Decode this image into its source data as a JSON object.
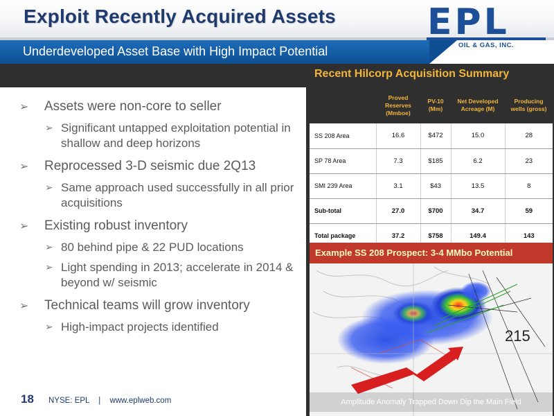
{
  "header": {
    "title": "Exploit Recently Acquired Assets",
    "subtitle": "Underdeveloped Asset Base with High Impact Potential"
  },
  "logo": {
    "letters": "EPL",
    "company": "OIL & GAS, INC."
  },
  "bullets": [
    {
      "text": "Assets were non-core to seller",
      "sub": [
        "Significant untapped exploitation potential in shallow and deep horizons"
      ]
    },
    {
      "text": "Reprocessed 3-D seismic due 2Q13",
      "sub": [
        "Same approach used successfully in all prior acquisitions"
      ]
    },
    {
      "text": "Existing robust inventory",
      "sub": [
        "80 behind pipe & 22 PUD locations",
        "Light spending in 2013; accelerate in 2014 & beyond w/ seismic"
      ]
    },
    {
      "text": "Technical teams will grow inventory",
      "sub": [
        "High-impact projects identified"
      ]
    }
  ],
  "footer": {
    "page": "18",
    "ticker": "NYSE: EPL",
    "separator": "|",
    "url": "www.eplweb.com"
  },
  "summary": {
    "title": "Recent Hilcorp Acquisition Summary",
    "headers": [
      "",
      "Proved Reserves (Mmboe)",
      "PV-10 (Mm)",
      "Net Developed Acreage (M)",
      "Producing wells (gross)"
    ],
    "rows": [
      [
        "SS 208 Area",
        "16.6",
        "$472",
        "15.0",
        "28"
      ],
      [
        "SP 78 Area",
        "7.3",
        "$185",
        "6.2",
        "23"
      ],
      [
        "SMI 239 Area",
        "3.1",
        "$43",
        "13.5",
        "8"
      ],
      [
        "Sub-total",
        "27.0",
        "$700",
        "34.7",
        "59"
      ],
      [
        "Total package",
        "37.2",
        "$758",
        "149.4",
        "143"
      ]
    ]
  },
  "map": {
    "title": "Example SS 208 Prospect:  3-4 MMbo Potential",
    "block_label": "215",
    "caption": "Amplitude Anomaly Trapped Down Dip the Main Field"
  },
  "colors": {
    "title_blue": "#1f3a6d",
    "band_blue": "#0e4f93",
    "dark_gray": "#2f2f30",
    "accent_gold": "#f3b53a",
    "map_red": "#c0392b"
  }
}
